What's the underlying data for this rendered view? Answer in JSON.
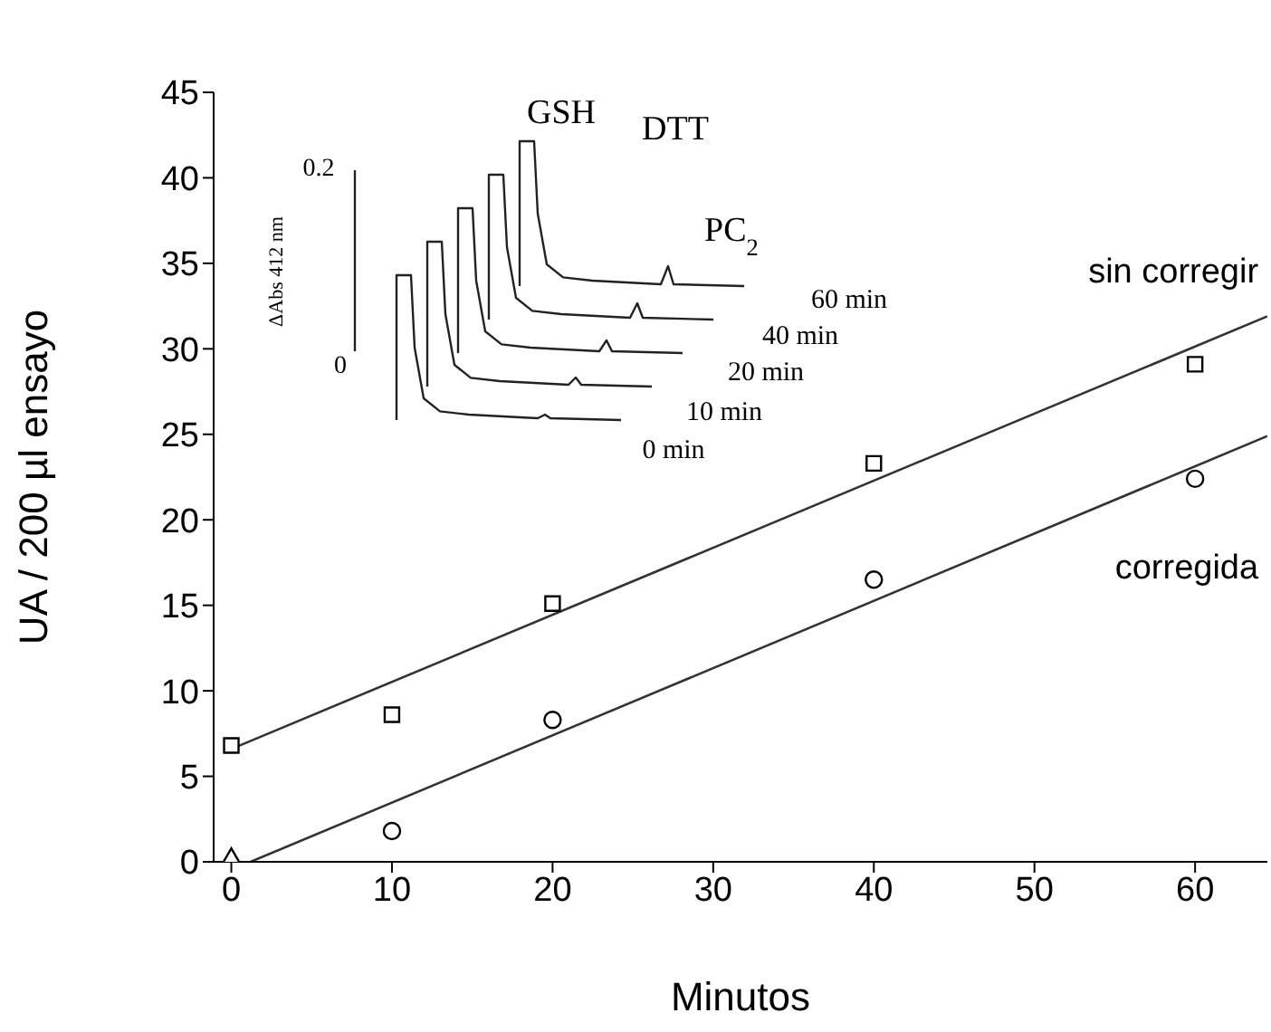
{
  "chart_data": {
    "type": "scatter",
    "xlabel": "Minutos",
    "ylabel": "UA / 200 µl ensayo",
    "xlim": [
      -1.1,
      64.5
    ],
    "ylim": [
      0,
      45
    ],
    "xticks": [
      0,
      10,
      20,
      30,
      40,
      50,
      60
    ],
    "yticks": [
      0,
      5,
      10,
      15,
      20,
      25,
      30,
      35,
      40,
      45
    ],
    "series": [
      {
        "name": "sin corregir",
        "marker": "square",
        "color": "#000000",
        "x": [
          0,
          10,
          20,
          40,
          60
        ],
        "values": [
          6.8,
          8.6,
          15.1,
          23.3,
          29.1
        ]
      },
      {
        "name": "corregida",
        "marker": "circle",
        "color": "#000000",
        "x": [
          10,
          20,
          40,
          60
        ],
        "values": [
          1.8,
          8.3,
          16.5,
          22.4
        ]
      },
      {
        "marker": "diamond",
        "color": "#000000",
        "x": [
          0
        ],
        "values": [
          0
        ]
      },
      {
        "type": "line",
        "marker": "none",
        "color": "#333333",
        "x": [
          0,
          64.5
        ],
        "values": [
          6.6,
          31.9
        ]
      },
      {
        "type": "line",
        "marker": "none",
        "color": "#333333",
        "x": [
          1.2,
          64.5
        ],
        "values": [
          0,
          24.9
        ]
      }
    ],
    "annotations": [
      "GSH",
      "DTT",
      "PC$_{2}$",
      "0.2",
      "0",
      "ΔAbs 412 nm",
      "60 min",
      "40 min",
      "20 min",
      "10 min",
      "0 min"
    ]
  }
}
